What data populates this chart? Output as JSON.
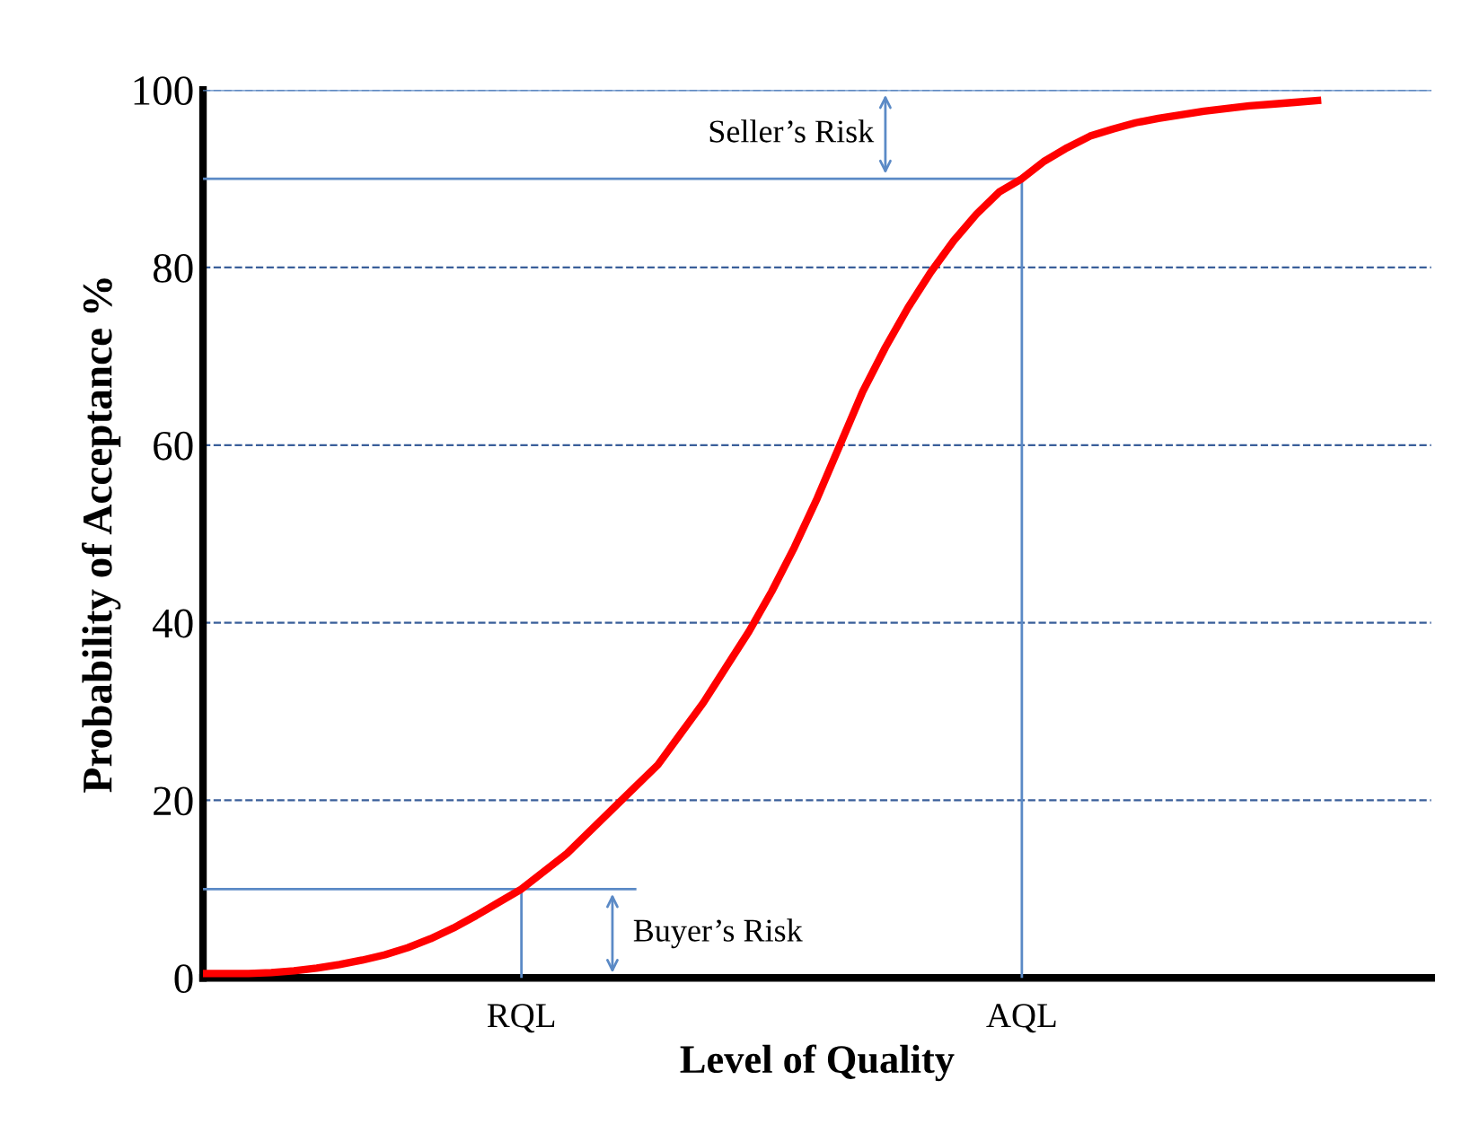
{
  "chart_data": {
    "type": "line",
    "xlabel": "Level of Quality",
    "ylabel": "Probability of Acceptance %",
    "categories": [
      null,
      null,
      null,
      null,
      null,
      null,
      null,
      null,
      null,
      null,
      null,
      null,
      null,
      null,
      "RQL",
      null,
      null,
      null,
      null,
      null,
      null,
      null,
      null,
      null,
      null,
      null,
      null,
      null,
      null,
      null,
      null,
      null,
      null,
      null,
      null,
      null,
      "AQL",
      null,
      null,
      null,
      null,
      null,
      null,
      null,
      null,
      null,
      null,
      null,
      null,
      null,
      null,
      null,
      null,
      null,
      null
    ],
    "series": [
      {
        "color": "#ff0000",
        "values": [
          0.5,
          0.5,
          0.5,
          0.6,
          0.8,
          1.1,
          1.5,
          2,
          2.6,
          3.4,
          4.4,
          5.6,
          7,
          8.5,
          10,
          12,
          14,
          16.5,
          19,
          21.5,
          24,
          27.5,
          31,
          35,
          39,
          43.5,
          48.5,
          54,
          60,
          66,
          71,
          75.5,
          79.5,
          83,
          86,
          88.5,
          90,
          92,
          93.5,
          94.8,
          95.6,
          96.3,
          96.8,
          97.2,
          97.6,
          97.9,
          98.2,
          98.4,
          98.6,
          98.8,
          null,
          null,
          null,
          null,
          null
        ]
      }
    ],
    "ylim": [
      0,
      100
    ],
    "yticks": [
      0,
      20,
      40,
      60,
      80,
      100
    ],
    "grid": "y",
    "line_style": "solid",
    "marker": "none",
    "ref_lines": [
      {
        "axis": "y",
        "value": 100,
        "color": "#5b8ac6"
      },
      {
        "axis": "y",
        "value": 90,
        "color": "#5b8ac6"
      },
      {
        "axis": "y",
        "value": 10,
        "color": "#5b8ac6"
      },
      {
        "axis": "x",
        "value": "RQL",
        "color": "#5b8ac6"
      },
      {
        "axis": "x",
        "value": "AQL",
        "color": "#5b8ac6"
      }
    ],
    "annotations": [
      "Seller’s Risk",
      "Buyer’s Risk"
    ]
  }
}
